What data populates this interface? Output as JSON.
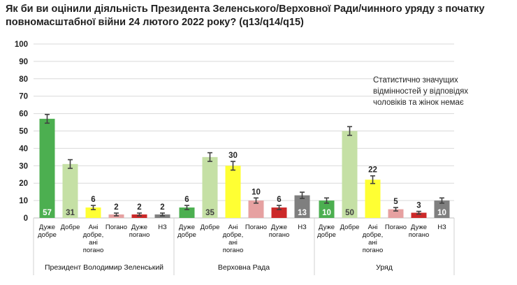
{
  "title": "Як би ви оцінили діяльність Президента Зеленського/Верховної Ради/чинного уряду з початку повномасштабної війни 24 лютого 2022 року? (q13/q14/q15)",
  "note": "Статистично значущих відмінностей у відповідях чоловіків та жінок немає",
  "colors": {
    "very_good": "#4caf50",
    "good": "#c5e0a5",
    "neither": "#ffff33",
    "bad": "#e6a1a1",
    "very_bad": "#cc2929",
    "dk": "#7f7f7f",
    "grid": "#d9d9d9",
    "error_bar": "#404040"
  },
  "chart_data": {
    "type": "bar",
    "ylim": [
      0,
      100
    ],
    "yticks": [
      0,
      10,
      20,
      30,
      40,
      50,
      60,
      70,
      80,
      90,
      100
    ],
    "grid": true,
    "categories": [
      "Дуже добре",
      "Добре",
      "Ані добре, ані погано",
      "Погано",
      "Дуже погано",
      "НЗ"
    ],
    "category_lines": [
      [
        "Дуже",
        "добре"
      ],
      [
        "Добре"
      ],
      [
        "Ані",
        "добре,",
        "ані",
        "погано"
      ],
      [
        "Погано"
      ],
      [
        "Дуже",
        "погано"
      ],
      [
        "НЗ"
      ]
    ],
    "groups": [
      {
        "name": "Президент Володимир Зеленський",
        "values": [
          57,
          31,
          6,
          2,
          2,
          2
        ],
        "errors": [
          2.5,
          2.5,
          1.2,
          0.8,
          0.8,
          0.8
        ]
      },
      {
        "name": "Верховна Рада",
        "values": [
          6,
          35,
          30,
          10,
          6,
          13
        ],
        "errors": [
          1.2,
          2.5,
          2.5,
          1.5,
          1.2,
          1.8
        ]
      },
      {
        "name": "Уряд",
        "values": [
          10,
          50,
          22,
          5,
          3,
          10
        ],
        "errors": [
          1.5,
          2.5,
          2.2,
          1.0,
          0.8,
          1.5
        ]
      }
    ],
    "labels_inside": [
      true,
      true,
      false,
      false,
      false,
      true
    ]
  }
}
